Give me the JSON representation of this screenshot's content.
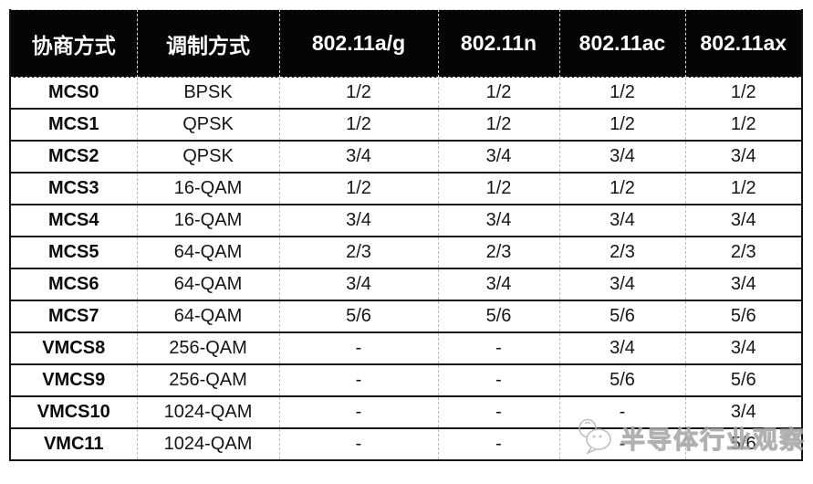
{
  "chart_data": {
    "type": "table",
    "title": "",
    "columns": [
      "协商方式",
      "调制方式",
      "802.11a/g",
      "802.11n",
      "802.11ac",
      "802.11ax"
    ],
    "rows": [
      [
        "MCS0",
        "BPSK",
        "1/2",
        "1/2",
        "1/2",
        "1/2"
      ],
      [
        "MCS1",
        "QPSK",
        "1/2",
        "1/2",
        "1/2",
        "1/2"
      ],
      [
        "MCS2",
        "QPSK",
        "3/4",
        "3/4",
        "3/4",
        "3/4"
      ],
      [
        "MCS3",
        "16-QAM",
        "1/2",
        "1/2",
        "1/2",
        "1/2"
      ],
      [
        "MCS4",
        "16-QAM",
        "3/4",
        "3/4",
        "3/4",
        "3/4"
      ],
      [
        "MCS5",
        "64-QAM",
        "2/3",
        "2/3",
        "2/3",
        "2/3"
      ],
      [
        "MCS6",
        "64-QAM",
        "3/4",
        "3/4",
        "3/4",
        "3/4"
      ],
      [
        "MCS7",
        "64-QAM",
        "5/6",
        "5/6",
        "5/6",
        "5/6"
      ],
      [
        "VMCS8",
        "256-QAM",
        "-",
        "-",
        "3/4",
        "3/4"
      ],
      [
        "VMCS9",
        "256-QAM",
        "-",
        "-",
        "5/6",
        "5/6"
      ],
      [
        "VMCS10",
        "1024-QAM",
        "-",
        "-",
        "-",
        "3/4"
      ],
      [
        "VMC11",
        "1024-QAM",
        "-",
        "-",
        "-",
        "5/6"
      ]
    ],
    "layout": {
      "header_style": "black-background-white-text",
      "row_dividers": "solid-black",
      "column_dividers": "dashed-gray",
      "grid": true
    }
  },
  "watermark": {
    "text": "半导体行业观察",
    "logo": "chick-speech-bubble-logo"
  },
  "colors": {
    "header_bg": "#050505",
    "header_text": "#ffffff",
    "body_text": "#151515",
    "row_border": "#141414",
    "column_divider": "#bdbdbd",
    "watermark": "#b5b5b5",
    "page_bg": "#ffffff"
  }
}
